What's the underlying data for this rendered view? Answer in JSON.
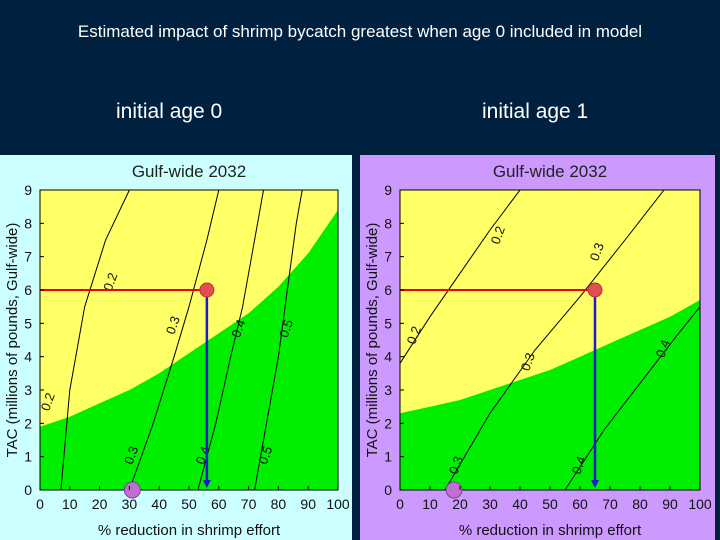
{
  "slide": {
    "title": "Estimated impact of shrimp bycatch greatest when age 0 included in model",
    "left_label": "initial age 0",
    "right_label": "initial age 1"
  },
  "colors": {
    "background": "#002040",
    "left_panel_bg": "#ccffff",
    "right_panel_bg": "#cc99ff",
    "yellow_region": "#ffff66",
    "green_region": "#00ee00",
    "red_line": "#ee0000",
    "blue_line": "#1a1ad0",
    "contour": "#000000"
  },
  "chart_data": [
    {
      "type": "contour",
      "title": "Gulf-wide 2032",
      "xlabel": "% reduction in shrimp effort",
      "ylabel": "TAC (millions of pounds, Gulf-wide)",
      "xlim": [
        0,
        100
      ],
      "ylim": [
        0,
        9
      ],
      "xticks": [
        "0",
        "10",
        "20",
        "30",
        "40",
        "50",
        "60",
        "70",
        "80",
        "90",
        "100"
      ],
      "yticks": [
        "0",
        "1",
        "2",
        "3",
        "4",
        "5",
        "6",
        "7",
        "8",
        "9"
      ],
      "green_boundary": [
        [
          0,
          1.9
        ],
        [
          10,
          2.2
        ],
        [
          20,
          2.6
        ],
        [
          30,
          3.0
        ],
        [
          40,
          3.5
        ],
        [
          50,
          4.1
        ],
        [
          60,
          4.7
        ],
        [
          70,
          5.3
        ],
        [
          80,
          6.1
        ],
        [
          90,
          7.1
        ],
        [
          100,
          8.4
        ]
      ],
      "contours": [
        {
          "label": "0.2",
          "points": [
            [
              7,
              0
            ],
            [
              10,
              3
            ],
            [
              15,
              5.5
            ],
            [
              22,
              7.5
            ],
            [
              30,
              9
            ]
          ]
        },
        {
          "label": "0.3",
          "points": [
            [
              30,
              0
            ],
            [
              38,
              2
            ],
            [
              45,
              4
            ],
            [
              50,
              5.5
            ],
            [
              56,
              7.5
            ],
            [
              60,
              9
            ]
          ]
        },
        {
          "label": "0.4",
          "points": [
            [
              53,
              0
            ],
            [
              59,
              2
            ],
            [
              64,
              4
            ],
            [
              68,
              5.5
            ],
            [
              71,
              7
            ],
            [
              75,
              9
            ]
          ]
        },
        {
          "label": "0.5",
          "points": [
            [
              72,
              0
            ],
            [
              76,
              2
            ],
            [
              80,
              4
            ],
            [
              83,
              6
            ],
            [
              86,
              8
            ],
            [
              88,
              9
            ]
          ]
        }
      ],
      "contour_labels": [
        {
          "text": "0.2",
          "x": 25,
          "y": 6.2
        },
        {
          "text": "0.3",
          "x": 46,
          "y": 4.9
        },
        {
          "text": "0.4",
          "x": 68,
          "y": 4.8
        },
        {
          "text": "0.5",
          "x": 84,
          "y": 4.8
        },
        {
          "text": "0.2",
          "x": 4,
          "y": 2.6
        },
        {
          "text": "0.3",
          "x": 32,
          "y": 1.0
        },
        {
          "text": "0.4",
          "x": 56,
          "y": 1.0
        },
        {
          "text": "0.5",
          "x": 77,
          "y": 1.0
        }
      ],
      "selection": {
        "tac": 6,
        "reduction": 56,
        "marker_bottom_x": 31
      }
    },
    {
      "type": "contour",
      "title": "Gulf-wide 2032",
      "xlabel": "% reduction in shrimp effort",
      "ylabel": "TAC (millions of pounds, Gulf-wide)",
      "xlim": [
        0,
        100
      ],
      "ylim": [
        0,
        9
      ],
      "xticks": [
        "0",
        "10",
        "20",
        "30",
        "40",
        "50",
        "60",
        "70",
        "80",
        "90",
        "100"
      ],
      "yticks": [
        "0",
        "1",
        "2",
        "3",
        "4",
        "5",
        "6",
        "7",
        "8",
        "9"
      ],
      "green_boundary": [
        [
          0,
          2.3
        ],
        [
          10,
          2.5
        ],
        [
          20,
          2.7
        ],
        [
          30,
          3.0
        ],
        [
          40,
          3.3
        ],
        [
          50,
          3.6
        ],
        [
          60,
          4.0
        ],
        [
          70,
          4.4
        ],
        [
          80,
          4.8
        ],
        [
          90,
          5.2
        ],
        [
          100,
          5.7
        ]
      ],
      "contours": [
        {
          "label": "0.2",
          "points": [
            [
              0,
              3.8
            ],
            [
              10,
              5.2
            ],
            [
              20,
              6.5
            ],
            [
              30,
              7.8
            ],
            [
              40,
              9
            ]
          ]
        },
        {
          "label": "0.3",
          "points": [
            [
              15,
              0
            ],
            [
              30,
              2.3
            ],
            [
              45,
              4.2
            ],
            [
              60,
              5.8
            ],
            [
              75,
              7.5
            ],
            [
              88,
              9
            ]
          ]
        },
        {
          "label": "0.4",
          "points": [
            [
              55,
              0
            ],
            [
              68,
              1.8
            ],
            [
              80,
              3.2
            ],
            [
              92,
              4.6
            ],
            [
              100,
              5.5
            ]
          ]
        }
      ],
      "contour_labels": [
        {
          "text": "0.2",
          "x": 34,
          "y": 7.6
        },
        {
          "text": "0.3",
          "x": 67,
          "y": 7.1
        },
        {
          "text": "0.2",
          "x": 6,
          "y": 4.6
        },
        {
          "text": "0.3",
          "x": 44,
          "y": 3.8
        },
        {
          "text": "0.4",
          "x": 89,
          "y": 4.2
        },
        {
          "text": "0.3",
          "x": 20,
          "y": 0.7
        },
        {
          "text": "0.4",
          "x": 61,
          "y": 0.7
        }
      ],
      "selection": {
        "tac": 6,
        "reduction": 65,
        "marker_bottom_x": 18
      }
    }
  ]
}
